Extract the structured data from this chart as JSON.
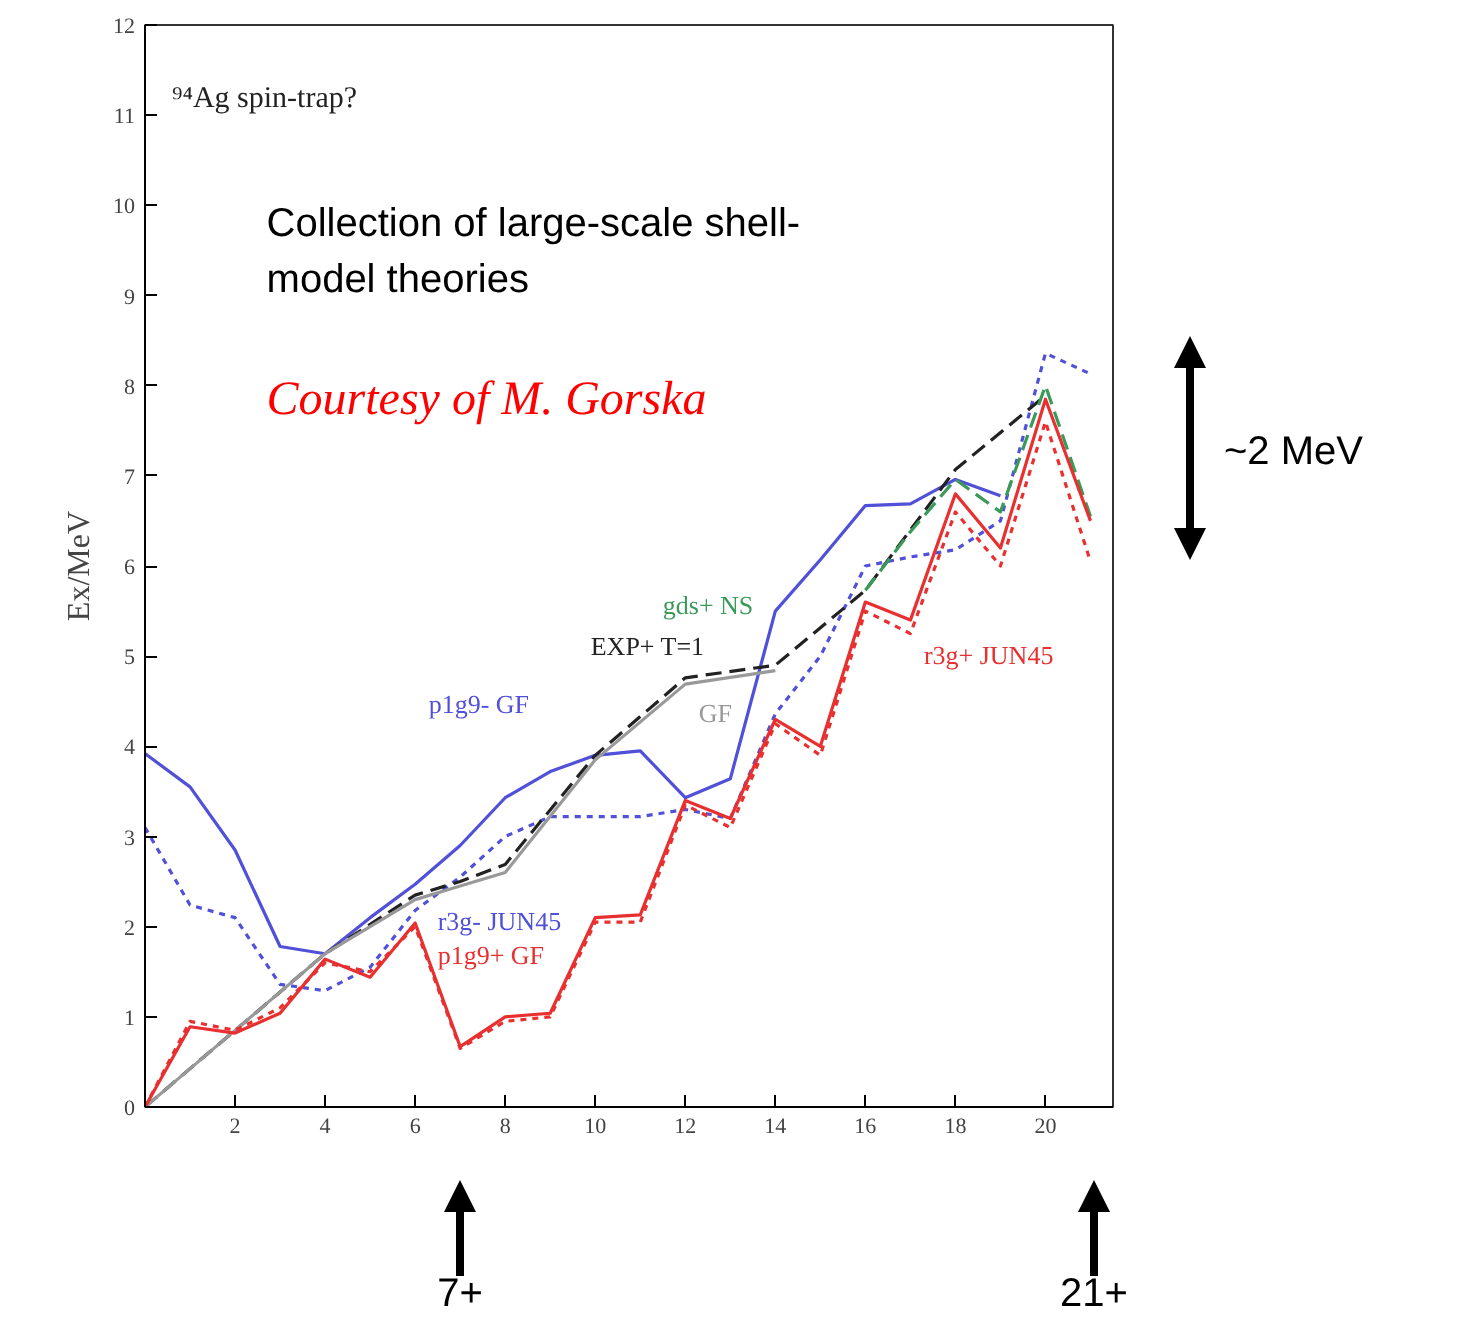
{
  "chart_data": {
    "type": "line",
    "title": "⁹⁴Ag spin-trap?",
    "subtitle": "Collection of large-scale shell-model theories",
    "ylabel": "Ex/MeV",
    "xlim": [
      0,
      21.5
    ],
    "xticks": [
      2,
      4,
      6,
      8,
      10,
      12,
      14,
      16,
      18,
      20
    ],
    "ylim": [
      0,
      12
    ],
    "yticks": [
      0,
      1,
      2,
      3,
      4,
      5,
      6,
      7,
      8,
      9,
      10,
      11,
      12
    ],
    "grid": false,
    "marker": "none",
    "annotations": [
      "Courtesy of M. Gorska",
      "~2 MeV",
      "7+",
      "21+"
    ],
    "series": [
      {
        "name": "p1g9- GF",
        "color": "#5050d8",
        "line_style": "solid",
        "x": [
          0,
          1,
          2,
          3,
          4,
          5,
          6,
          7,
          8,
          9,
          10,
          11,
          12,
          13,
          14,
          15,
          16,
          17,
          18,
          19
        ],
        "values": [
          3.92,
          3.55,
          2.85,
          1.78,
          1.7,
          2.1,
          2.47,
          2.9,
          3.43,
          3.72,
          3.9,
          3.95,
          3.43,
          3.64,
          5.5,
          6.07,
          6.67,
          6.69,
          6.96,
          6.78
        ]
      },
      {
        "name": "r3g- JUN45",
        "color": "#5050d8",
        "line_style": "dotted",
        "x": [
          0,
          1,
          2,
          3,
          4,
          5,
          6,
          7,
          8,
          9,
          10,
          11,
          12,
          13,
          14,
          15,
          16,
          17,
          18,
          19,
          20,
          21
        ],
        "values": [
          3.1,
          2.24,
          2.1,
          1.36,
          1.29,
          1.55,
          2.18,
          2.55,
          3.0,
          3.22,
          3.22,
          3.22,
          3.3,
          3.2,
          4.36,
          5.0,
          6.0,
          6.1,
          6.18,
          6.5,
          8.36,
          8.13
        ]
      },
      {
        "name": "EXP+ T=1",
        "color": "#222222",
        "line_style": "dashed",
        "x": [
          0,
          2,
          4,
          6,
          7,
          8,
          10,
          12,
          14,
          16,
          18,
          20
        ],
        "values": [
          0,
          0.85,
          1.7,
          2.35,
          2.5,
          2.69,
          3.9,
          4.76,
          4.9,
          5.73,
          7.07,
          7.89
        ]
      },
      {
        "name": "GF",
        "color": "#999999",
        "line_style": "solid",
        "x": [
          0,
          2,
          4,
          6,
          7,
          8,
          10,
          12,
          14
        ],
        "values": [
          0,
          0.85,
          1.7,
          2.3,
          2.45,
          2.6,
          3.85,
          4.69,
          4.84
        ]
      },
      {
        "name": "gds+ NS",
        "color": "#3a9a5a",
        "line_style": "dashed",
        "x": [
          16,
          17,
          18,
          19,
          20,
          21
        ],
        "values": [
          5.73,
          6.38,
          6.96,
          6.6,
          8.0,
          6.55
        ]
      },
      {
        "name": "p1g9+ GF",
        "color": "#e83030",
        "line_style": "solid",
        "x": [
          0,
          1,
          2,
          3,
          4,
          5,
          6,
          7,
          8,
          9,
          10,
          11,
          12,
          13,
          14,
          15,
          16,
          17,
          18,
          19,
          20,
          21
        ],
        "values": [
          0,
          0.89,
          0.82,
          1.04,
          1.64,
          1.44,
          2.04,
          0.67,
          1.0,
          1.04,
          2.1,
          2.13,
          3.4,
          3.2,
          4.3,
          4.0,
          5.6,
          5.4,
          6.8,
          6.2,
          7.85,
          6.5
        ]
      },
      {
        "name": "r3g+ JUN45",
        "color": "#e83030",
        "line_style": "dotted",
        "x": [
          0,
          1,
          2,
          3,
          4,
          5,
          6,
          7,
          8,
          9,
          10,
          11,
          12,
          13,
          14,
          15,
          16,
          17,
          18,
          19,
          20,
          21
        ],
        "values": [
          0,
          0.95,
          0.85,
          1.1,
          1.6,
          1.5,
          2.0,
          0.65,
          0.95,
          1.0,
          2.05,
          2.05,
          3.35,
          3.1,
          4.25,
          3.9,
          5.5,
          5.25,
          6.6,
          6.0,
          7.6,
          6.05
        ]
      }
    ]
  }
}
